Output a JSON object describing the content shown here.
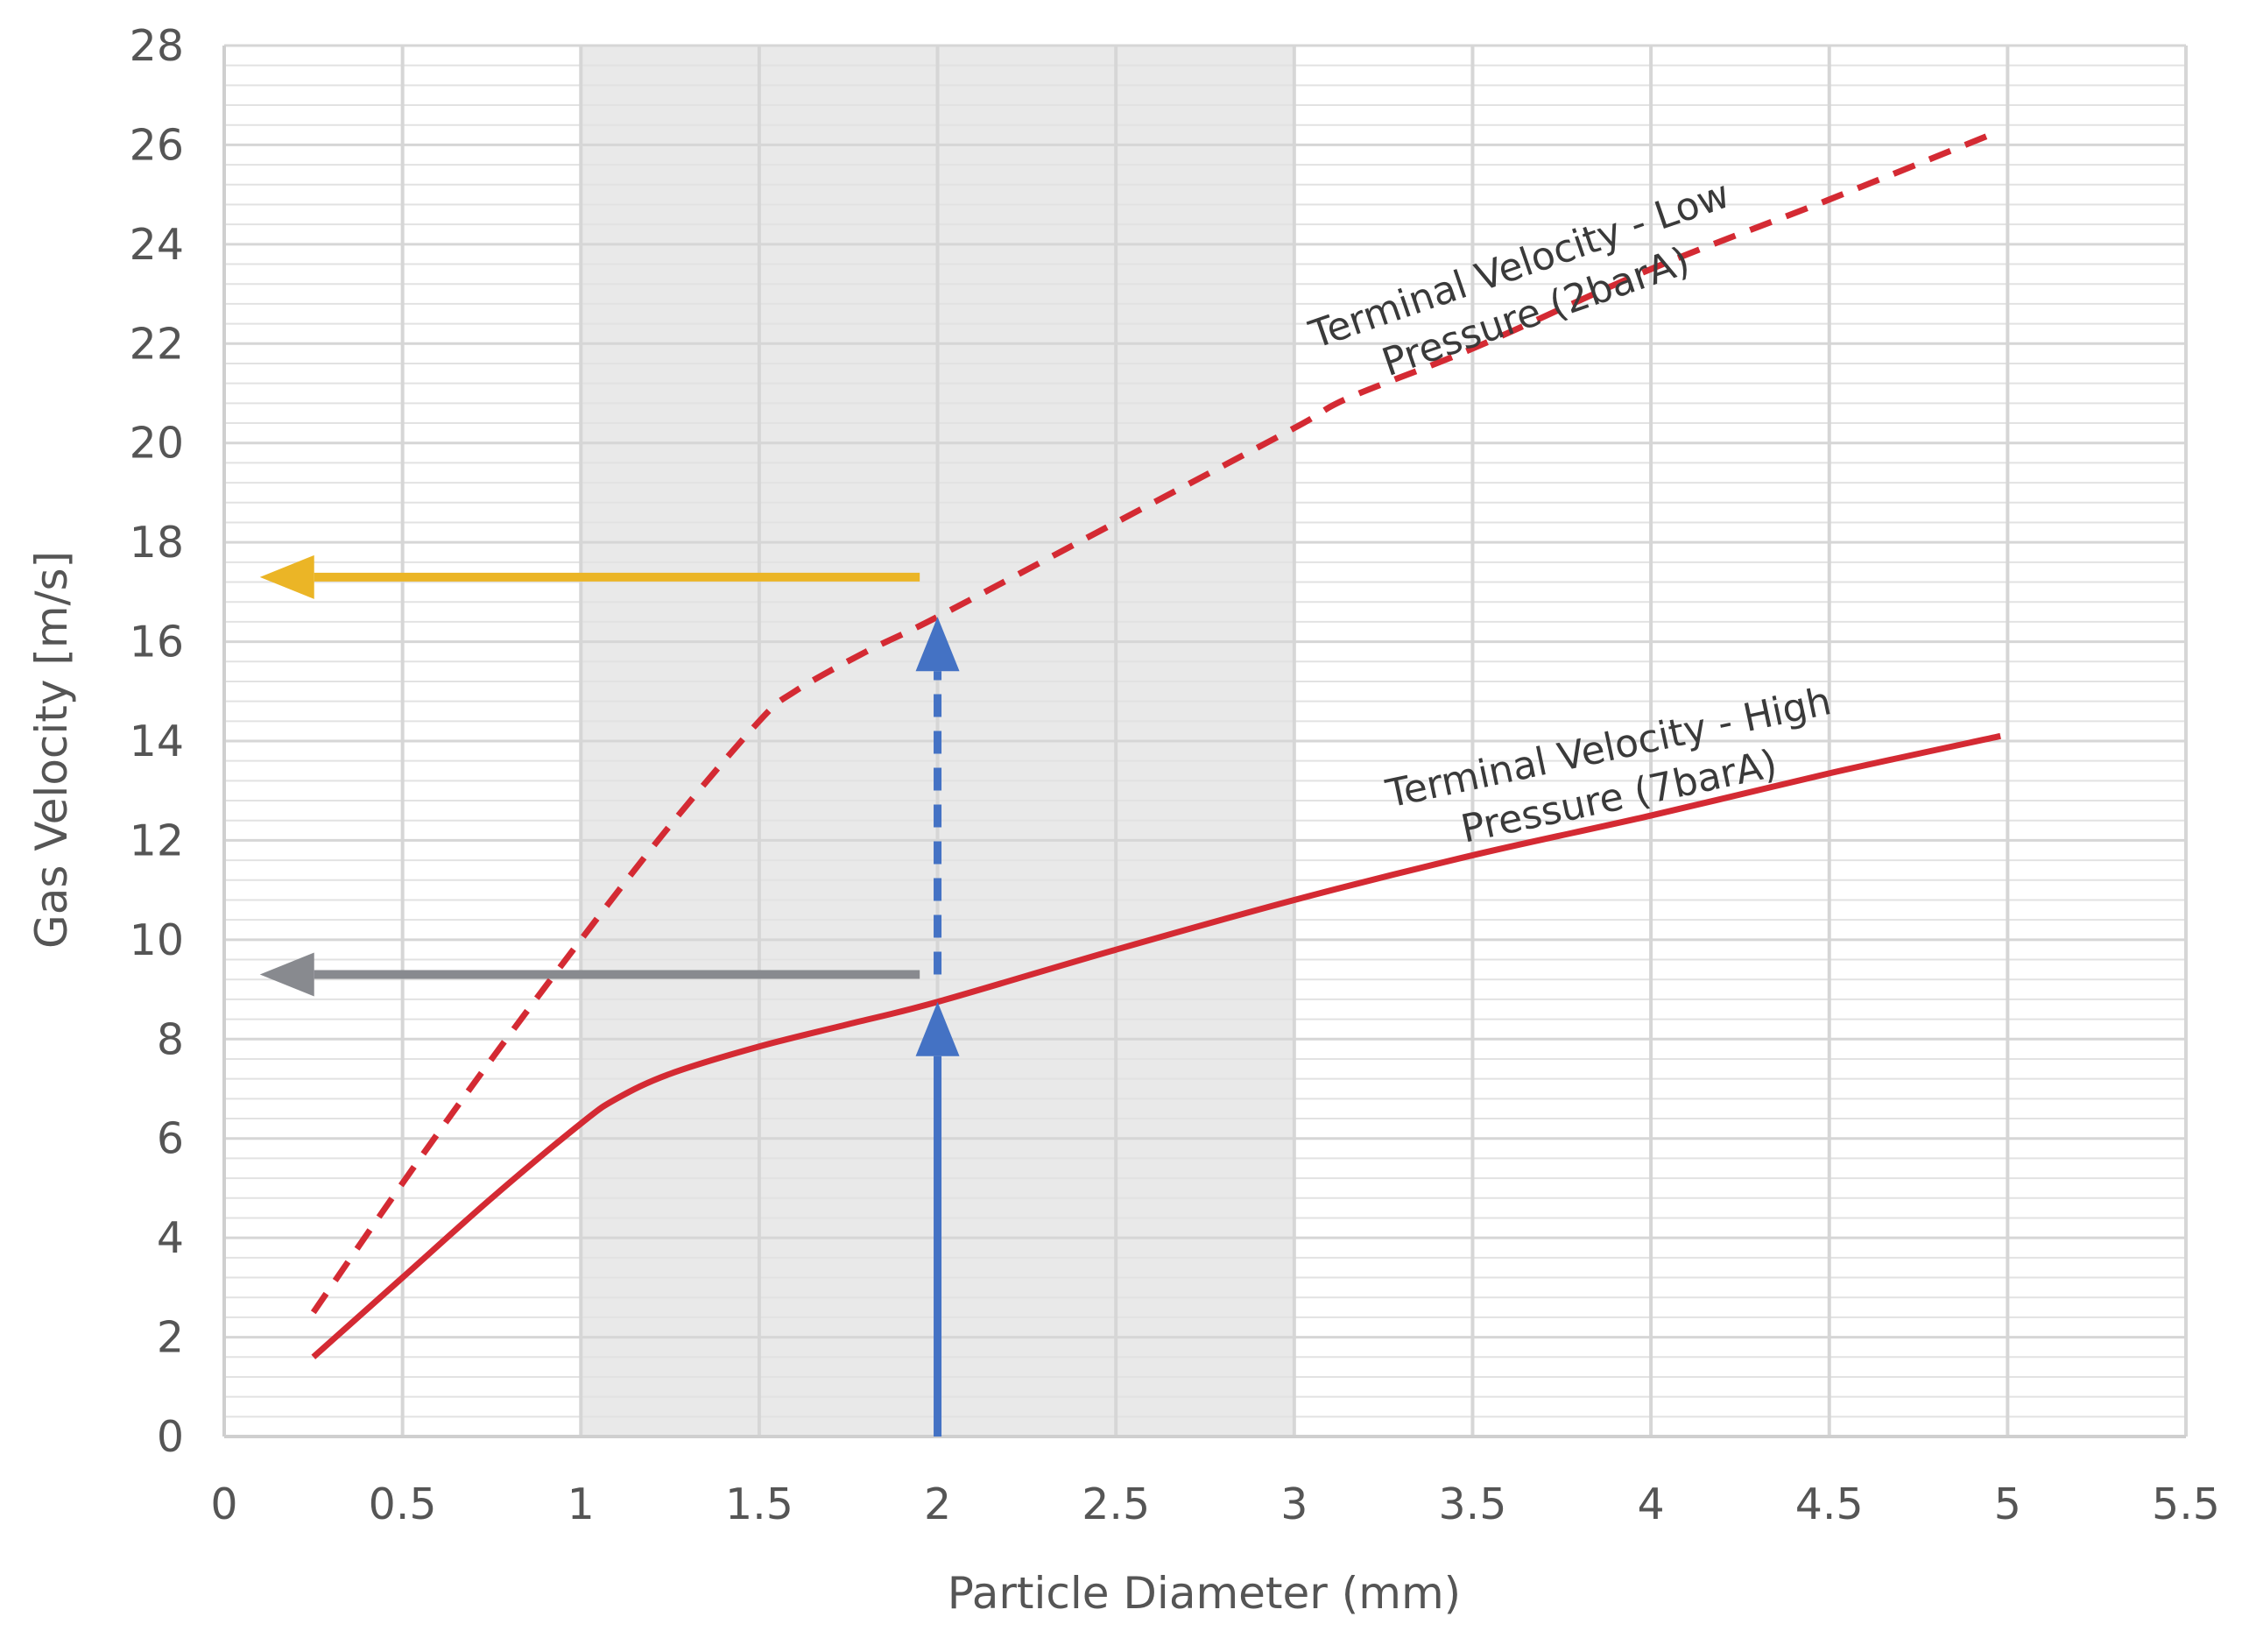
{
  "chart_data": {
    "type": "line",
    "xlabel": "Particle Diameter (mm)",
    "ylabel": "Gas Velocity [m/s]",
    "xlim": [
      0,
      5.5
    ],
    "ylim": [
      0,
      28
    ],
    "x_ticks": [
      "0",
      "0.5",
      "1",
      "1.5",
      "2",
      "2.5",
      "3",
      "3.5",
      "4",
      "4.5",
      "5",
      "5.5"
    ],
    "y_ticks": [
      "0",
      "2",
      "4",
      "6",
      "8",
      "10",
      "12",
      "14",
      "16",
      "18",
      "20",
      "22",
      "24",
      "26",
      "28"
    ],
    "grid": true,
    "shaded_band": {
      "x_from": 1,
      "x_to": 3,
      "color": "#e9e9e9"
    },
    "series": [
      {
        "style": "dashed",
        "color": "#d42a33",
        "x": [
          0.25,
          0.5,
          0.75,
          1.0,
          1.25,
          1.5,
          1.6,
          1.8,
          2.0,
          2.5,
          3.0,
          3.15,
          3.5,
          4.0,
          4.5,
          4.95
        ],
        "y": [
          2.5,
          5.1,
          7.6,
          10.0,
          12.3,
          14.4,
          15.0,
          15.8,
          16.5,
          18.4,
          20.3,
          20.9,
          21.9,
          23.5,
          24.9,
          26.2
        ]
      },
      {
        "style": "solid",
        "color": "#d42a33",
        "x": [
          0.25,
          0.5,
          0.75,
          1.0,
          1.1,
          1.25,
          1.5,
          1.75,
          2.0,
          2.5,
          3.0,
          3.5,
          4.0,
          4.5,
          4.98
        ],
        "y": [
          1.6,
          3.2,
          4.8,
          6.3,
          6.8,
          7.3,
          7.85,
          8.3,
          8.75,
          9.8,
          10.8,
          11.7,
          12.5,
          13.35,
          14.1
        ]
      }
    ],
    "annotations": [
      {
        "lines": [
          "Terminal Velocity - Low",
          "Pressure (2barA)"
        ]
      },
      {
        "lines": [
          "Terminal Velocity - High",
          "Pressure (7barA)"
        ]
      }
    ],
    "reference_arrows": [
      {
        "kind": "vertical",
        "style": "solid",
        "color": "#4472c4",
        "x": 2.0,
        "y_from": 0,
        "y_to": 8.75
      },
      {
        "kind": "vertical",
        "style": "dashed",
        "color": "#4472c4",
        "x": 2.0,
        "y_from": 9.3,
        "y_to": 16.5
      },
      {
        "kind": "horizontal",
        "style": "solid",
        "color": "#888a8f",
        "y": 9.3,
        "x_from": 1.95,
        "x_to": 0.1
      },
      {
        "kind": "horizontal",
        "style": "solid",
        "color": "#ebb526",
        "y": 17.3,
        "x_from": 1.95,
        "x_to": 0.1
      }
    ]
  }
}
